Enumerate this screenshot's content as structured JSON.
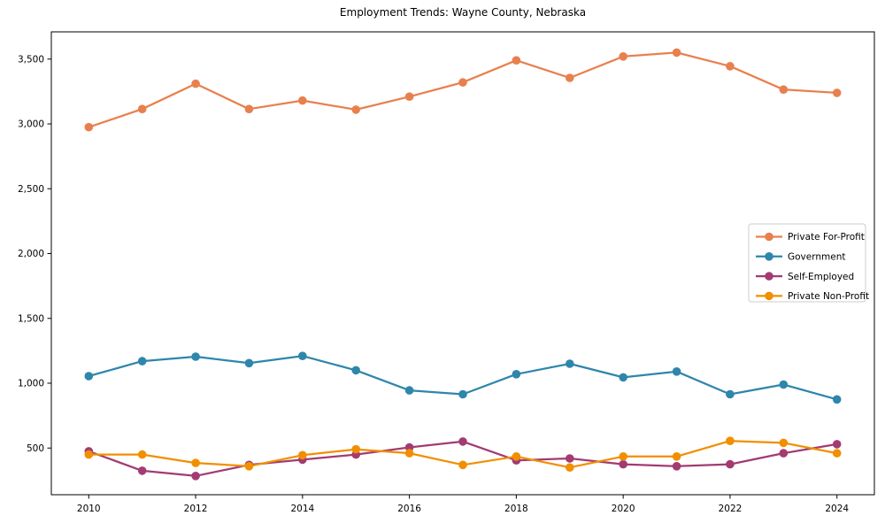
{
  "title": "Employment Trends: Wayne County, Nebraska",
  "chart_data": {
    "type": "line",
    "title": "Employment Trends: Wayne County, Nebraska",
    "xlabel": "",
    "ylabel": "",
    "grid": false,
    "legend_position": "center right",
    "x": [
      2010,
      2011,
      2012,
      2013,
      2014,
      2015,
      2016,
      2017,
      2018,
      2019,
      2020,
      2021,
      2022,
      2023,
      2024
    ],
    "x_ticks": [
      2010,
      2012,
      2014,
      2016,
      2018,
      2020,
      2022,
      2024
    ],
    "x_tick_labels": [
      "2010",
      "2012",
      "2014",
      "2016",
      "2018",
      "2020",
      "2022",
      "2024"
    ],
    "y_ticks": [
      500,
      1000,
      1500,
      2000,
      2500,
      3000,
      3500
    ],
    "y_tick_labels": [
      "500",
      "1,000",
      "1,500",
      "2,000",
      "2,500",
      "3,000",
      "3,500"
    ],
    "xlim": [
      2009.3,
      2024.7
    ],
    "ylim": [
      140,
      3710
    ],
    "series": [
      {
        "name": "Private For-Profit",
        "color": "#E8804E",
        "values": [
          2975,
          3115,
          3310,
          3115,
          3180,
          3110,
          3210,
          3320,
          3490,
          3355,
          3520,
          3550,
          3445,
          3265,
          3240
        ]
      },
      {
        "name": "Government",
        "color": "#2E86AB",
        "values": [
          1055,
          1170,
          1205,
          1155,
          1210,
          1100,
          945,
          915,
          1070,
          1150,
          1045,
          1090,
          915,
          990,
          875
        ]
      },
      {
        "name": "Self-Employed",
        "color": "#A23B72",
        "values": [
          475,
          325,
          285,
          370,
          410,
          450,
          505,
          550,
          405,
          420,
          375,
          360,
          375,
          460,
          530
        ]
      },
      {
        "name": "Private Non-Profit",
        "color": "#F18F01",
        "values": [
          450,
          450,
          385,
          360,
          445,
          490,
          460,
          370,
          435,
          350,
          435,
          435,
          555,
          540,
          460
        ]
      }
    ],
    "style": {
      "background": "#ffffff",
      "spine_color": "#000000",
      "tick_label_color": "#000000",
      "legend_border_color": "#cccccc",
      "line_width": 2.25,
      "marker_radius": 4.8
    }
  }
}
